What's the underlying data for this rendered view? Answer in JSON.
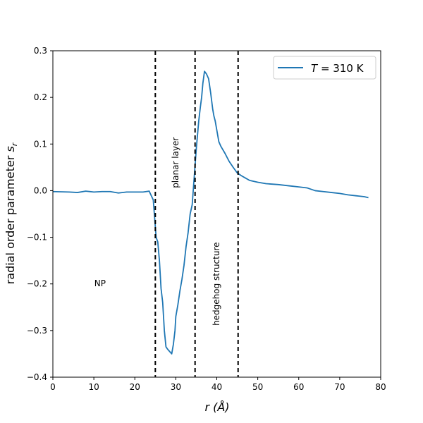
{
  "chart_data": {
    "type": "line",
    "title": "",
    "xlabel_main": "r",
    "xlabel_unit": "(Å)",
    "ylabel_main": "radial order parameter",
    "ylabel_symbol": "s",
    "ylabel_subscript": "r",
    "xlim": [
      0,
      80
    ],
    "ylim": [
      -0.4,
      0.3
    ],
    "xticks": [
      0,
      10,
      20,
      30,
      40,
      50,
      60,
      70,
      80
    ],
    "xtick_labels": [
      "0",
      "10",
      "20",
      "30",
      "40",
      "50",
      "60",
      "70",
      "80"
    ],
    "yticks": [
      -0.4,
      -0.3,
      -0.2,
      -0.1,
      0.0,
      0.1,
      0.2,
      0.3
    ],
    "ytick_labels": [
      "−0.4",
      "−0.3",
      "−0.2",
      "−0.1",
      "0.0",
      "0.1",
      "0.2",
      "0.3"
    ],
    "grid": false,
    "legend_position": "top-right",
    "legend": {
      "var": "T",
      "rest": " = 310 K"
    },
    "series": [
      {
        "color": "#1f77b4",
        "x": [
          0,
          4,
          6,
          8,
          10,
          12,
          14,
          16,
          18,
          20,
          22,
          23.5,
          24.5,
          25.2,
          25.6,
          26,
          26.4,
          26.8,
          27.2,
          27.6,
          28,
          28.5,
          29,
          29.4,
          29.8,
          30,
          30.5,
          31,
          31.5,
          32,
          32.5,
          33,
          33.5,
          34,
          34.5,
          35,
          35.3,
          35.6,
          36,
          36.3,
          36.6,
          37,
          37.5,
          38,
          38.5,
          39,
          39.3,
          39.6,
          40,
          40.5,
          41,
          42,
          43,
          44,
          45,
          46,
          47,
          48,
          50,
          52,
          55,
          58,
          60,
          62,
          64,
          66,
          68,
          70,
          72,
          74,
          76,
          77
        ],
        "y": [
          -0.002,
          -0.003,
          -0.004,
          -0.001,
          -0.003,
          -0.002,
          -0.002,
          -0.005,
          -0.003,
          -0.003,
          -0.003,
          -0.001,
          -0.02,
          -0.1,
          -0.11,
          -0.15,
          -0.21,
          -0.24,
          -0.3,
          -0.335,
          -0.34,
          -0.345,
          -0.35,
          -0.33,
          -0.3,
          -0.27,
          -0.245,
          -0.215,
          -0.19,
          -0.16,
          -0.12,
          -0.09,
          -0.05,
          -0.03,
          0.03,
          0.09,
          0.12,
          0.15,
          0.18,
          0.2,
          0.23,
          0.256,
          0.25,
          0.24,
          0.21,
          0.175,
          0.16,
          0.15,
          0.13,
          0.105,
          0.095,
          0.08,
          0.063,
          0.05,
          0.038,
          0.032,
          0.027,
          0.022,
          0.018,
          0.015,
          0.013,
          0.01,
          0.008,
          0.006,
          0.0,
          -0.002,
          -0.004,
          -0.006,
          -0.009,
          -0.011,
          -0.013,
          -0.015
        ]
      }
    ],
    "vlines": [
      25,
      34.7,
      45.2
    ],
    "annotations": [
      {
        "text": "NP",
        "x": 11.5,
        "y": -0.2,
        "rotation": 0
      },
      {
        "text": "planar layer",
        "x": 30,
        "y": 0.06,
        "rotation": -90
      },
      {
        "text": "hedgehog structure",
        "x": 40,
        "y": -0.2,
        "rotation": -90
      }
    ]
  }
}
